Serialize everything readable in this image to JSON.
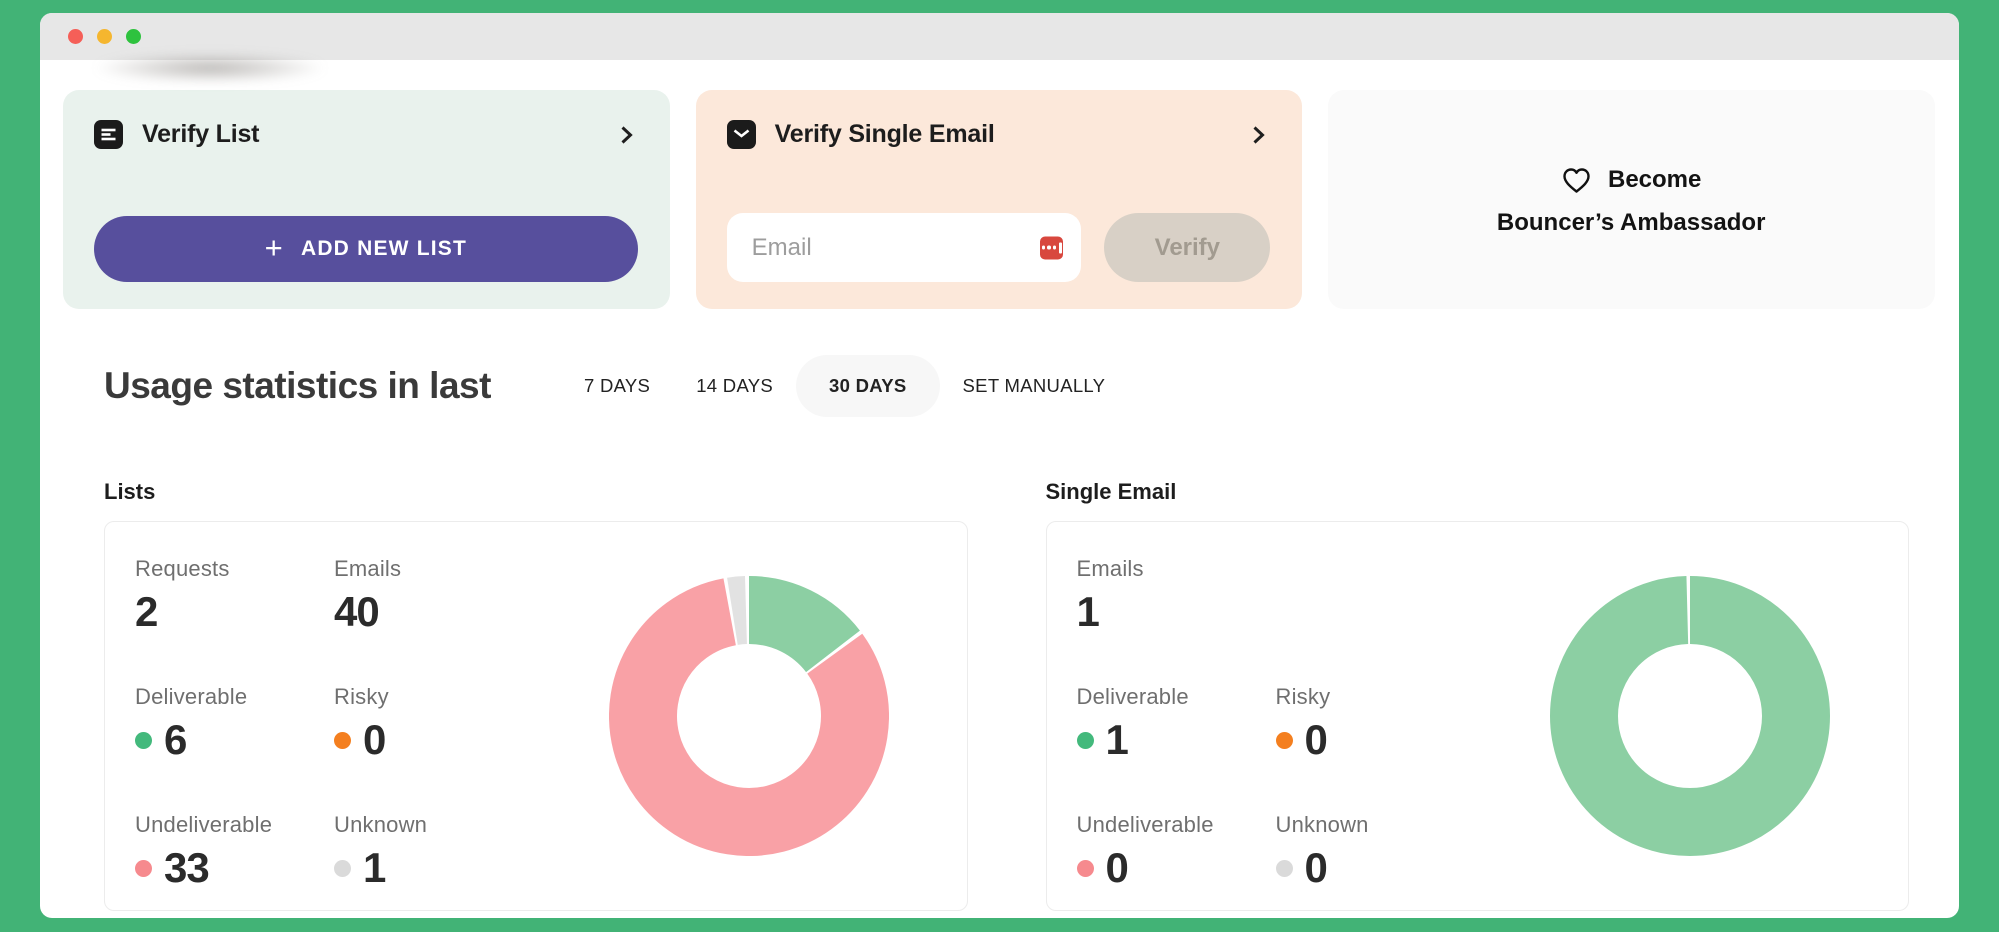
{
  "window": {
    "traffic_lights": [
      {
        "name": "close",
        "color": "#f55f58"
      },
      {
        "name": "minimize",
        "color": "#f5b62f"
      },
      {
        "name": "maximize",
        "color": "#2ec23e"
      }
    ]
  },
  "verify_list_card": {
    "title": "Verify List",
    "add_button": "ADD NEW LIST",
    "plus_glyph": "+"
  },
  "verify_email_card": {
    "title": "Verify Single Email",
    "email_placeholder": "Email",
    "verify_button": "Verify"
  },
  "ambassador_card": {
    "line1": "Become",
    "line2": "Bouncer’s Ambassador"
  },
  "usage": {
    "heading": "Usage statistics in last",
    "tabs": [
      {
        "label": "7 DAYS",
        "active": false
      },
      {
        "label": "14 DAYS",
        "active": false
      },
      {
        "label": "30 DAYS",
        "active": true
      },
      {
        "label": "SET MANUALLY",
        "active": false
      }
    ]
  },
  "lists_section": {
    "title": "Lists",
    "requests_label": "Requests",
    "requests_value": "2",
    "emails_label": "Emails",
    "emails_value": "40",
    "deliverable_label": "Deliverable",
    "deliverable_value": "6",
    "risky_label": "Risky",
    "risky_value": "0",
    "undeliverable_label": "Undeliverable",
    "undeliverable_value": "33",
    "unknown_label": "Unknown",
    "unknown_value": "1"
  },
  "single_email_section": {
    "title": "Single Email",
    "emails_label": "Emails",
    "emails_value": "1",
    "deliverable_label": "Deliverable",
    "deliverable_value": "1",
    "risky_label": "Risky",
    "risky_value": "0",
    "undeliverable_label": "Undeliverable",
    "undeliverable_value": "0",
    "unknown_label": "Unknown",
    "unknown_value": "0"
  },
  "status_colors": {
    "deliverable": "#43b97c",
    "risky": "#f47f1f",
    "undeliverable": "#f68a8e",
    "unknown": "#dadada"
  },
  "accent_colors": {
    "frame_green": "#42b376",
    "button_purple": "#574f9d",
    "mint_card": "#e9f2ed",
    "peach_card": "#fce8da"
  },
  "chart_data": [
    {
      "type": "pie",
      "donut": true,
      "title": "Lists usage (last 30 days)",
      "labels": [
        "Deliverable",
        "Undeliverable",
        "Unknown"
      ],
      "values": [
        6,
        33,
        1
      ],
      "total": 40,
      "colors": [
        "#8ccfa3",
        "#f9a1a6",
        "#e2e2e2"
      ],
      "start_angle": "top",
      "direction": "clockwise",
      "inner_radius_ratio": 0.51,
      "legend_position": "none"
    },
    {
      "type": "pie",
      "donut": true,
      "title": "Single Email usage (last 30 days)",
      "labels": [
        "Deliverable"
      ],
      "values": [
        1
      ],
      "total": 1,
      "colors": [
        "#8ccfa3"
      ],
      "start_angle": "top",
      "direction": "clockwise",
      "inner_radius_ratio": 0.51,
      "legend_position": "none"
    }
  ]
}
